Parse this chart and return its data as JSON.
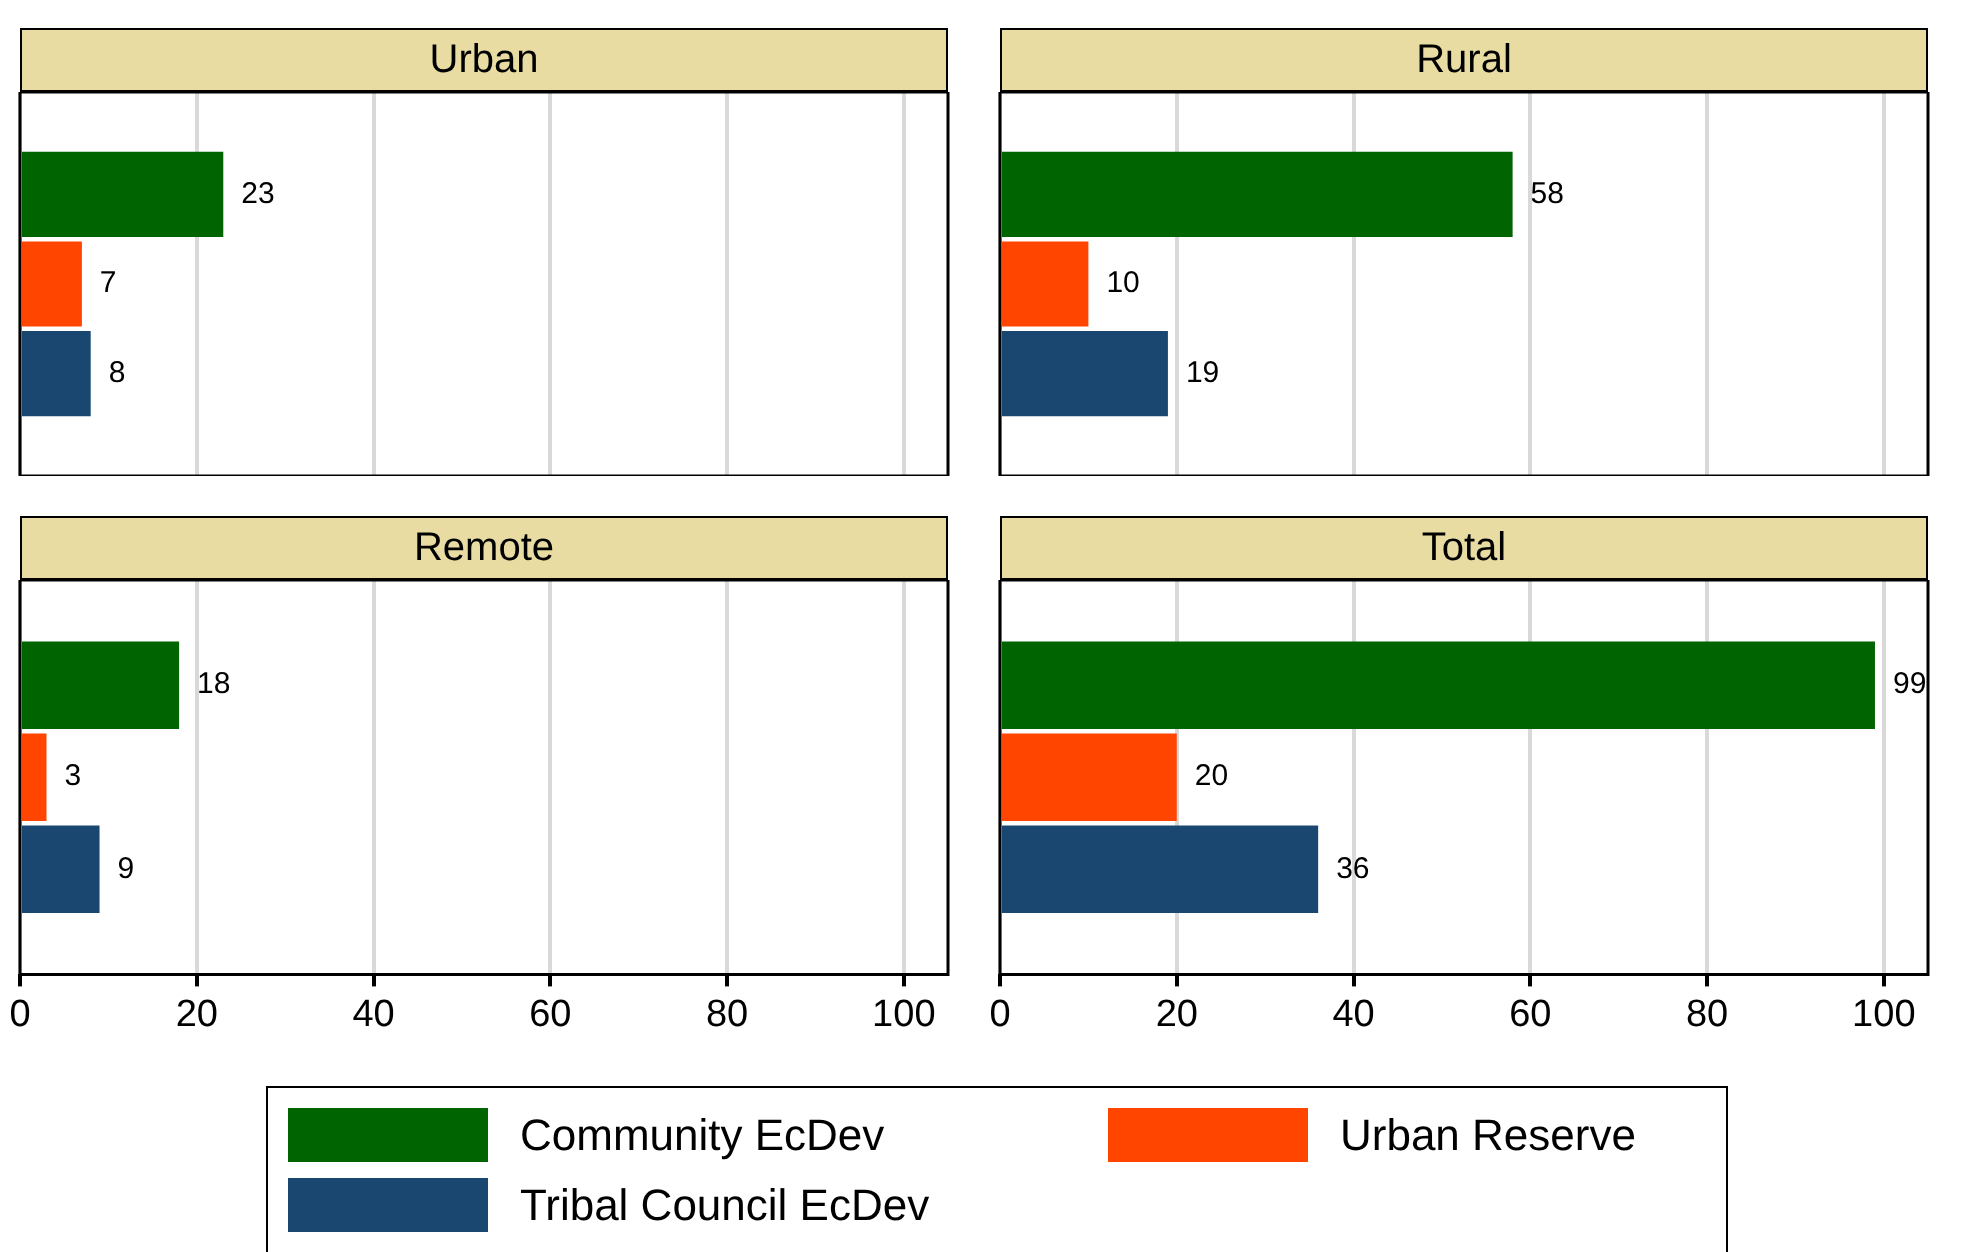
{
  "chart_data": [
    {
      "type": "bar",
      "orientation": "horizontal",
      "title": "Urban",
      "categories": [
        null
      ],
      "series": [
        {
          "name": "Community EcDev",
          "color": "#006400",
          "values": [
            23
          ]
        },
        {
          "name": "Urban Reserve",
          "color": "#ff4500",
          "values": [
            7
          ]
        },
        {
          "name": "Tribal Council EcDev",
          "color": "#1a476f",
          "values": [
            8
          ]
        }
      ],
      "xlim": [
        0,
        105
      ],
      "xticks": [
        0,
        20,
        40,
        60,
        80,
        100
      ],
      "grid": "x",
      "data_labels": true,
      "tick_labels": false,
      "legend": "bottom"
    },
    {
      "type": "bar",
      "orientation": "horizontal",
      "title": "Rural",
      "categories": [
        null
      ],
      "series": [
        {
          "color": "#006400",
          "values": [
            58
          ]
        },
        {
          "color": "#ff4500",
          "values": [
            10
          ]
        },
        {
          "color": "#1a476f",
          "values": [
            19
          ]
        }
      ],
      "xlim": [
        0,
        105
      ],
      "xticks": [
        0,
        20,
        40,
        60,
        80,
        100
      ],
      "grid": "x",
      "data_labels": true,
      "tick_labels": false
    },
    {
      "type": "bar",
      "orientation": "horizontal",
      "title": "Remote",
      "categories": [
        null
      ],
      "series": [
        {
          "color": "#006400",
          "values": [
            18
          ]
        },
        {
          "color": "#ff4500",
          "values": [
            3
          ]
        },
        {
          "color": "#1a476f",
          "values": [
            9
          ]
        }
      ],
      "xlim": [
        0,
        105
      ],
      "xticks": [
        0,
        20,
        40,
        60,
        80,
        100
      ],
      "grid": "x",
      "data_labels": true,
      "tick_labels": "x"
    },
    {
      "type": "bar",
      "orientation": "horizontal",
      "title": "Total",
      "categories": [
        null
      ],
      "series": [
        {
          "color": "#006400",
          "values": [
            99
          ]
        },
        {
          "color": "#ff4500",
          "values": [
            20
          ]
        },
        {
          "color": "#1a476f",
          "values": [
            36
          ]
        }
      ],
      "xlim": [
        0,
        105
      ],
      "xticks": [
        0,
        20,
        40,
        60,
        80,
        100
      ],
      "grid": "x",
      "data_labels": true,
      "tick_labels": "x"
    }
  ]
}
